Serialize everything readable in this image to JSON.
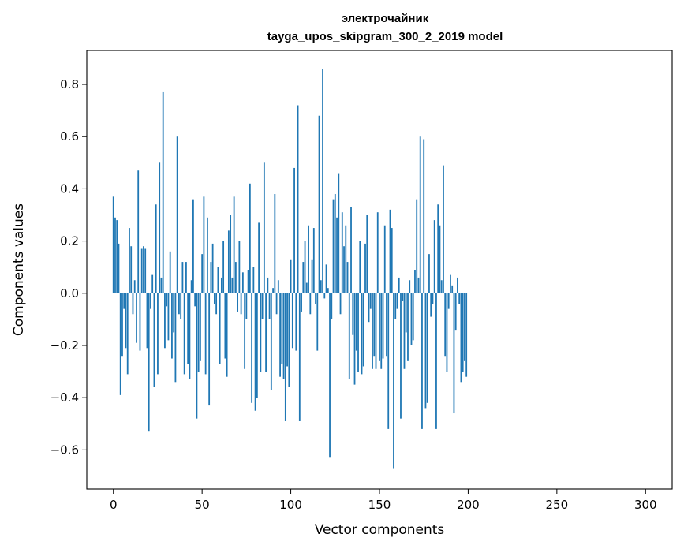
{
  "chart_data": {
    "type": "bar",
    "title_line1": "электрочайник",
    "title_line2": "tayga_upos_skipgram_300_2_2019 model",
    "xlabel": "Vector components",
    "ylabel": "Components values",
    "xlim": [
      -15,
      315
    ],
    "ylim": [
      -0.75,
      0.93
    ],
    "xticks": [
      0,
      50,
      100,
      150,
      200,
      250,
      300
    ],
    "yticks": [
      -0.6,
      -0.4,
      -0.2,
      0.0,
      0.2,
      0.4,
      0.6,
      0.8
    ],
    "ytick_labels": [
      "−0.6",
      "−0.4",
      "−0.2",
      "0.0",
      "0.2",
      "0.4",
      "0.6",
      "0.8"
    ],
    "bar_color": "#1f77b4",
    "values": [
      0.37,
      0.29,
      0.28,
      0.19,
      -0.39,
      -0.24,
      -0.06,
      -0.21,
      -0.31,
      0.25,
      0.18,
      -0.08,
      0.05,
      -0.19,
      0.47,
      -0.22,
      0.17,
      0.18,
      0.17,
      -0.21,
      -0.53,
      -0.06,
      0.07,
      -0.36,
      0.34,
      -0.31,
      0.5,
      0.06,
      0.77,
      -0.21,
      -0.05,
      -0.18,
      0.16,
      -0.25,
      -0.15,
      -0.34,
      0.6,
      -0.08,
      -0.1,
      0.12,
      -0.31,
      0.12,
      -0.27,
      -0.33,
      0.05,
      0.36,
      -0.05,
      -0.48,
      -0.3,
      -0.26,
      0.15,
      0.37,
      -0.31,
      0.29,
      -0.43,
      0.12,
      0.19,
      -0.04,
      -0.08,
      0.1,
      -0.27,
      0.06,
      0.2,
      -0.25,
      -0.32,
      0.24,
      0.3,
      0.06,
      0.37,
      0.12,
      -0.07,
      0.2,
      -0.08,
      0.08,
      -0.29,
      -0.1,
      0.09,
      0.42,
      -0.42,
      0.1,
      -0.45,
      -0.4,
      0.27,
      -0.3,
      -0.1,
      0.5,
      -0.3,
      0.06,
      -0.1,
      -0.37,
      0.02,
      0.38,
      -0.08,
      0.05,
      -0.32,
      -0.27,
      -0.33,
      -0.49,
      -0.28,
      -0.36,
      0.13,
      -0.21,
      0.48,
      -0.22,
      0.72,
      -0.49,
      -0.07,
      0.12,
      0.2,
      0.04,
      0.26,
      -0.08,
      0.13,
      0.25,
      -0.04,
      -0.22,
      0.68,
      0.05,
      0.86,
      -0.02,
      0.11,
      0.02,
      -0.63,
      -0.1,
      0.36,
      0.38,
      0.29,
      0.46,
      -0.08,
      0.31,
      0.18,
      0.26,
      0.12,
      -0.33,
      0.33,
      -0.16,
      -0.35,
      -0.22,
      -0.3,
      0.2,
      -0.31,
      -0.28,
      0.19,
      0.3,
      -0.11,
      -0.06,
      -0.29,
      -0.24,
      -0.29,
      0.31,
      -0.26,
      -0.29,
      -0.25,
      0.26,
      -0.24,
      -0.52,
      0.32,
      0.25,
      -0.67,
      -0.1,
      -0.06,
      0.06,
      -0.48,
      -0.03,
      -0.29,
      -0.15,
      -0.26,
      0.05,
      -0.2,
      -0.18,
      0.09,
      0.36,
      0.06,
      0.6,
      -0.52,
      0.59,
      -0.44,
      -0.42,
      0.15,
      -0.09,
      -0.04,
      0.28,
      -0.52,
      0.34,
      0.26,
      0.05,
      0.49,
      -0.24,
      -0.3,
      -0.06,
      0.07,
      0.03,
      -0.46,
      -0.14,
      0.06,
      -0.04,
      -0.34,
      -0.3,
      -0.26,
      -0.32
    ]
  }
}
